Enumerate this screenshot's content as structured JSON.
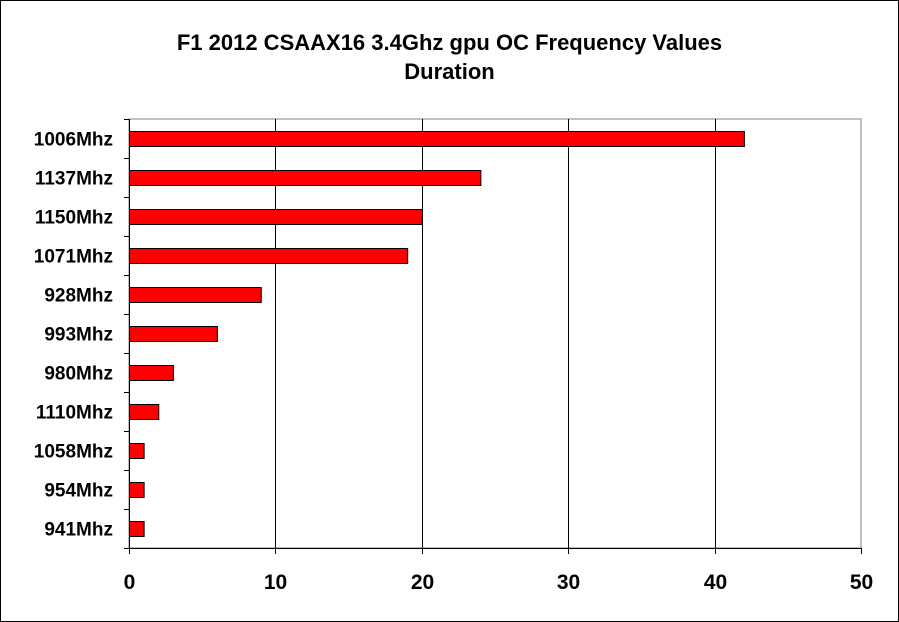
{
  "chart_data": {
    "type": "bar",
    "orientation": "horizontal",
    "title": "F1 2012 CSAAX16 3.4Ghz gpu OC Frequency Values",
    "subtitle": "Duration",
    "xlabel": "",
    "ylabel": "",
    "categories": [
      "1006Mhz",
      "1137Mhz",
      "1150Mhz",
      "1071Mhz",
      "928Mhz",
      "993Mhz",
      "980Mhz",
      "1110Mhz",
      "1058Mhz",
      "954Mhz",
      "941Mhz"
    ],
    "values": [
      42,
      24,
      20,
      19,
      9,
      6,
      3,
      2,
      1,
      1,
      1
    ],
    "xlim": [
      0,
      50
    ],
    "xticks": [
      0,
      10,
      20,
      30,
      40,
      50
    ],
    "grid": "vertical",
    "legend": "none",
    "bar_color": "#ff0000"
  }
}
